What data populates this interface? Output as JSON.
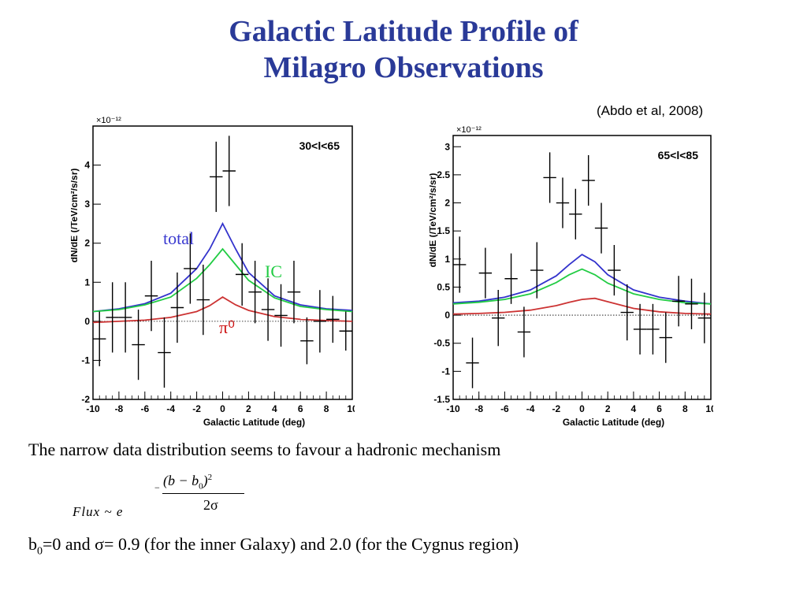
{
  "slide": {
    "title_line1": "Galactic Latitude Profile of",
    "title_line2": "Milagro Observations",
    "citation": "(Abdo et al, 2008)",
    "text1": "The narrow data distribution seems to favour a hadronic mechanism",
    "formula": {
      "lhs": "Flux ~ e",
      "numerator": "(b − b",
      "numerator_sub": "0",
      "numerator_close": ")",
      "numerator_sup": "2",
      "minus": "−",
      "denominator": "2σ"
    },
    "text2": {
      "b": "b",
      "sub": "0",
      "rest": "=0 and  σ= 0.9  (for the inner Galaxy) and 2.0 (for the Cygnus region)"
    }
  },
  "chart_data": [
    {
      "type": "scatter",
      "panel_label": "30<l<65",
      "xlabel": "Galactic Latitude (deg)",
      "ylabel": "dN/dE (/TeV/cm²/s/sr)",
      "y_multiplier": "×10⁻¹²",
      "xlim": [
        -10,
        10
      ],
      "ylim": [
        -2,
        5
      ],
      "x_ticks": [
        -10,
        -8,
        -6,
        -4,
        -2,
        0,
        2,
        4,
        6,
        8,
        10
      ],
      "y_ticks": [
        -2,
        -1,
        0,
        1,
        2,
        3,
        4
      ],
      "annotations": [
        "total",
        "IC",
        "π⁰"
      ],
      "annotation_colors": [
        "#3a3ad0",
        "#22cc44",
        "#cc1111"
      ],
      "data": {
        "x": [
          -9.5,
          -8.5,
          -7.5,
          -6.5,
          -5.5,
          -4.5,
          -3.5,
          -2.5,
          -1.5,
          -0.5,
          0.5,
          1.5,
          2.5,
          3.5,
          4.5,
          5.5,
          6.5,
          7.5,
          8.5,
          9.5
        ],
        "y": [
          -0.45,
          0.1,
          0.1,
          -0.6,
          0.65,
          -0.8,
          0.35,
          1.35,
          0.55,
          3.7,
          3.85,
          1.2,
          0.75,
          0.3,
          0.15,
          0.75,
          -0.5,
          0.0,
          0.05,
          -0.25
        ],
        "yerr": [
          0.7,
          0.9,
          0.9,
          0.9,
          0.9,
          0.9,
          0.9,
          0.9,
          0.9,
          0.9,
          0.9,
          0.8,
          0.8,
          0.8,
          0.8,
          0.8,
          0.6,
          0.8,
          0.6,
          0.5
        ]
      },
      "series": [
        {
          "name": "total",
          "color": "#3333cc",
          "x": [
            -10,
            -8,
            -6,
            -4,
            -2,
            -1,
            0,
            1,
            2,
            4,
            6,
            8,
            10
          ],
          "y": [
            0.25,
            0.32,
            0.45,
            0.72,
            1.35,
            1.85,
            2.5,
            1.85,
            1.25,
            0.65,
            0.42,
            0.32,
            0.28
          ]
        },
        {
          "name": "IC",
          "color": "#22cc44",
          "x": [
            -10,
            -8,
            -6,
            -4,
            -2,
            -1,
            0,
            1,
            2,
            4,
            6,
            8,
            10
          ],
          "y": [
            0.25,
            0.3,
            0.42,
            0.62,
            1.1,
            1.45,
            1.85,
            1.45,
            1.05,
            0.6,
            0.38,
            0.3,
            0.25
          ]
        },
        {
          "name": "π⁰",
          "color": "#cc3333",
          "x": [
            -10,
            -8,
            -6,
            -4,
            -2,
            -1,
            0,
            1,
            2,
            4,
            6,
            8,
            10
          ],
          "y": [
            -0.03,
            0.0,
            0.03,
            0.1,
            0.25,
            0.4,
            0.62,
            0.42,
            0.28,
            0.12,
            0.05,
            0.02,
            0.0
          ]
        }
      ]
    },
    {
      "type": "scatter",
      "panel_label": "65<l<85",
      "xlabel": "Galactic Latitude (deg)",
      "ylabel": "dN/dE (/TeV/cm²/s/sr)",
      "y_multiplier": "×10⁻¹²",
      "xlim": [
        -10,
        10
      ],
      "ylim": [
        -1.5,
        3.2
      ],
      "x_ticks": [
        -10,
        -8,
        -6,
        -4,
        -2,
        0,
        2,
        4,
        6,
        8,
        10
      ],
      "y_ticks": [
        -1.5,
        -1,
        -0.5,
        0,
        0.5,
        1,
        1.5,
        2,
        2.5,
        3
      ],
      "data": {
        "x": [
          -9.5,
          -8.5,
          -7.5,
          -6.5,
          -5.5,
          -4.5,
          -3.5,
          -2.5,
          -1.5,
          -0.5,
          0.5,
          1.5,
          2.5,
          3.5,
          4.5,
          5.5,
          6.5,
          7.5,
          8.5,
          9.5
        ],
        "y": [
          0.9,
          -0.85,
          0.75,
          -0.05,
          0.65,
          -0.3,
          0.8,
          2.45,
          2.0,
          1.8,
          2.4,
          1.55,
          0.8,
          0.05,
          -0.25,
          -0.25,
          -0.4,
          0.25,
          0.2,
          -0.05
        ],
        "yerr": [
          0.5,
          0.45,
          0.45,
          0.5,
          0.45,
          0.45,
          0.5,
          0.45,
          0.45,
          0.45,
          0.45,
          0.45,
          0.45,
          0.5,
          0.45,
          0.45,
          0.45,
          0.45,
          0.45,
          0.45
        ]
      },
      "series": [
        {
          "name": "total",
          "color": "#3333cc",
          "x": [
            -10,
            -8,
            -6,
            -4,
            -2,
            -1,
            0,
            1,
            2,
            4,
            6,
            8,
            10
          ],
          "y": [
            0.22,
            0.25,
            0.32,
            0.45,
            0.7,
            0.9,
            1.08,
            0.95,
            0.72,
            0.45,
            0.32,
            0.25,
            0.2
          ]
        },
        {
          "name": "IC",
          "color": "#22cc44",
          "x": [
            -10,
            -8,
            -6,
            -4,
            -2,
            -1,
            0,
            1,
            2,
            4,
            6,
            8,
            10
          ],
          "y": [
            0.2,
            0.23,
            0.28,
            0.38,
            0.58,
            0.72,
            0.82,
            0.72,
            0.57,
            0.38,
            0.28,
            0.22,
            0.2
          ]
        },
        {
          "name": "π⁰",
          "color": "#cc3333",
          "x": [
            -10,
            -8,
            -6,
            -4,
            -2,
            -1,
            0,
            1,
            2,
            4,
            6,
            8,
            10
          ],
          "y": [
            0.02,
            0.03,
            0.05,
            0.09,
            0.17,
            0.23,
            0.28,
            0.3,
            0.24,
            0.12,
            0.06,
            0.03,
            0.02
          ]
        }
      ]
    }
  ]
}
